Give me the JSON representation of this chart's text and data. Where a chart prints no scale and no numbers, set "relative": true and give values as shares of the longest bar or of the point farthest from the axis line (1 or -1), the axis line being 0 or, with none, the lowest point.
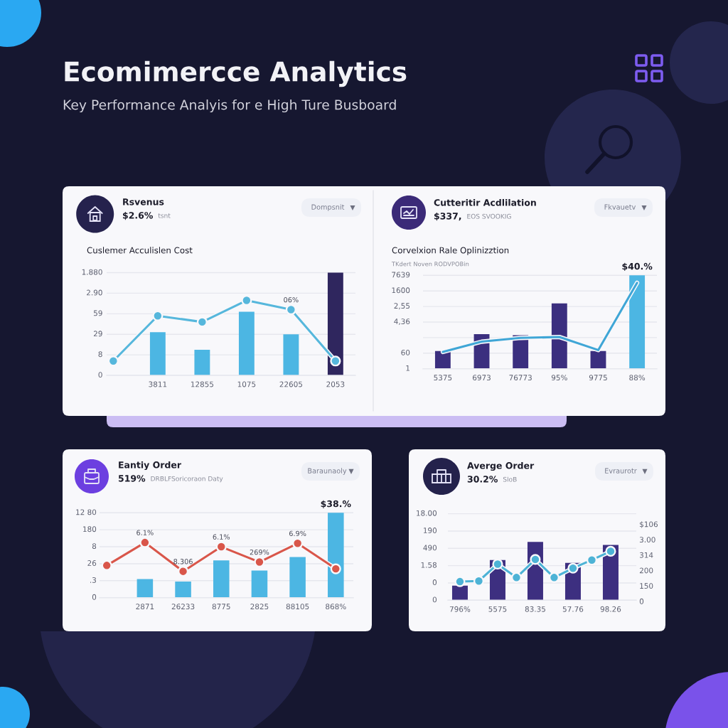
{
  "chart_data": [
    {
      "type": "bar",
      "title": "Rsvenus",
      "subtitle": "Cuslemer Acculislen Cost",
      "relative": true,
      "annotations": [
        "Ecomimercce Analytics",
        "Key Performance Analyis for e High Ture Busboard",
        "$2.6%",
        "tsnt",
        "Dompsnit",
        "1.880",
        "2.90",
        "59",
        "29",
        "8",
        "0",
        {
          "text": "06%",
          "x": "22605",
          "y": 0.64
        }
      ],
      "categories": [
        null,
        "3811",
        "12855",
        "1075",
        "22605",
        "2053"
      ],
      "series": [
        {
          "colors": [
            null,
            "#4cb6e3",
            "#4cb6e3",
            "#4cb6e3",
            "#4cb6e3",
            "#2f265e"
          ],
          "values": [
            null,
            0.42,
            0.25,
            0.62,
            0.4,
            1.0
          ]
        },
        {
          "type": "line",
          "color": "#56b7dc",
          "marker": "circle",
          "values": [
            0.14,
            0.58,
            0.52,
            0.73,
            0.64,
            0.14
          ]
        }
      ],
      "grid": "y"
    },
    {
      "type": "bar",
      "title": "Cutteritir Acdlilation",
      "subtitle": "Corvelxion Rale Oplinizztion",
      "relative": true,
      "annotations": [
        "$337,",
        "EOS SVOOKIG",
        "Fkvauetv",
        "TKdert Noven RODVPOBin",
        "7639",
        "1600",
        "2,55",
        "4,36",
        "60",
        "1",
        {
          "text": "$40.%",
          "x": "88%",
          "y": 1.0
        }
      ],
      "categories": [
        "5375",
        "6973",
        "76773",
        "95%",
        "9775",
        "88%"
      ],
      "series": [
        {
          "colors": [
            "#3b2f7f",
            "#3b2f7f",
            "#3b2f7f",
            "#3b2f7f",
            "#3b2f7f",
            "#4cb6e3"
          ],
          "values": [
            0.19,
            0.37,
            0.36,
            0.7,
            0.19,
            1.0
          ]
        },
        {
          "type": "line",
          "color": "#3fa6d6",
          "values": [
            0.18,
            0.29,
            0.33,
            0.34,
            0.2,
            0.92
          ]
        }
      ],
      "grid": "y"
    },
    {
      "type": "bar",
      "title": "Eantiy Order",
      "relative": true,
      "annotations": [
        "519%",
        "DRBLFSoricoraon Daty",
        "Baraunaoly",
        "12 80",
        "180",
        "8",
        "26",
        ".3",
        "0",
        {
          "text": "6.1%",
          "x": "2871",
          "y": 0.65
        },
        {
          "text": "8.306",
          "x": "26233",
          "y": 0.31
        },
        {
          "text": "6.1%",
          "x": "8775",
          "y": 0.6
        },
        {
          "text": "269%",
          "x": "2825",
          "y": 0.42
        },
        {
          "text": "6.9%",
          "x": "88105",
          "y": 0.64
        },
        {
          "text": "$38.%",
          "x": "868%",
          "y": 1.0
        }
      ],
      "categories": [
        null,
        "2871",
        "26233",
        "8775",
        "2825",
        "88105",
        "868%"
      ],
      "series": [
        {
          "colors": [
            null,
            "#4cb6e3",
            "#4cb6e3",
            "#4cb6e3",
            "#4cb6e3",
            "#4cb6e3",
            "#4cb6e3"
          ],
          "values": [
            null,
            0.22,
            0.19,
            0.44,
            0.32,
            0.48,
            1.0
          ]
        },
        {
          "type": "line",
          "color": "#d9564a",
          "marker": "circle",
          "values": [
            0.38,
            0.65,
            0.31,
            0.6,
            0.42,
            0.64,
            0.34
          ]
        }
      ],
      "grid": "y"
    },
    {
      "type": "bar",
      "title": "Averge Order",
      "relative": true,
      "annotations": [
        "30.2%",
        "SloB",
        "Evraurotr",
        "18.00",
        "190",
        "490",
        "1.58",
        "0",
        "0",
        "$106",
        "3.00",
        "314",
        "200",
        "150",
        "0"
      ],
      "categories": [
        "796%",
        null,
        "5575",
        null,
        "83.35",
        null,
        "57.76",
        null,
        "98.26"
      ],
      "series": [
        {
          "color": "#3d2f80",
          "values": [
            0.25,
            null,
            0.69,
            null,
            1.0,
            null,
            0.64,
            null,
            0.95
          ]
        },
        {
          "type": "line",
          "color": "#4db3d6",
          "marker": "circle",
          "values": [
            0.32,
            0.33,
            0.62,
            0.39,
            0.7,
            0.39,
            0.55,
            0.69,
            0.84
          ]
        }
      ],
      "grid": "y"
    }
  ]
}
